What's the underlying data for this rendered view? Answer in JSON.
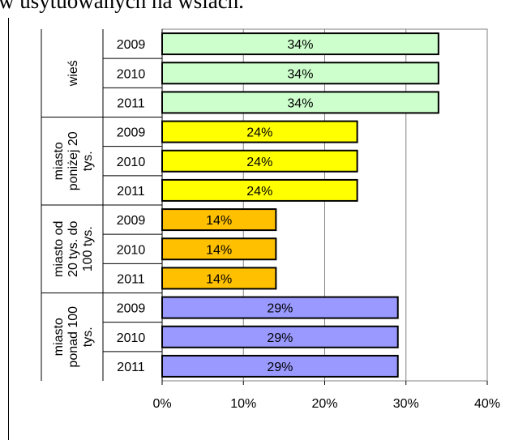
{
  "page_header": "w usytuowanych na wsiach.",
  "chart_data": {
    "type": "bar",
    "orientation": "horizontal",
    "title": "",
    "xlabel": "",
    "ylabel": "",
    "xlim": [
      0,
      40
    ],
    "x_ticks": [
      "0%",
      "10%",
      "20%",
      "30%",
      "40%"
    ],
    "grid": true,
    "legend": "none",
    "groups": [
      {
        "name": "wieś",
        "color": "#ccffcc",
        "bars": [
          {
            "year": "2009",
            "value": 34,
            "label": "34%"
          },
          {
            "year": "2010",
            "value": 34,
            "label": "34%"
          },
          {
            "year": "2011",
            "value": 34,
            "label": "34%"
          }
        ]
      },
      {
        "name": "miasto poniżej 20 tys.",
        "color": "#ffff00",
        "bars": [
          {
            "year": "2009",
            "value": 24,
            "label": "24%"
          },
          {
            "year": "2010",
            "value": 24,
            "label": "24%"
          },
          {
            "year": "2011",
            "value": 24,
            "label": "24%"
          }
        ]
      },
      {
        "name": "miasto od 20 tys. do 100 tys.",
        "color": "#ffc000",
        "bars": [
          {
            "year": "2009",
            "value": 14,
            "label": "14%"
          },
          {
            "year": "2010",
            "value": 14,
            "label": "14%"
          },
          {
            "year": "2011",
            "value": 14,
            "label": "14%"
          }
        ]
      },
      {
        "name": "miasto ponad 100 tys.",
        "color": "#9999ff",
        "bars": [
          {
            "year": "2009",
            "value": 29,
            "label": "29%"
          },
          {
            "year": "2010",
            "value": 29,
            "label": "29%"
          },
          {
            "year": "2011",
            "value": 29,
            "label": "29%"
          }
        ]
      }
    ]
  }
}
